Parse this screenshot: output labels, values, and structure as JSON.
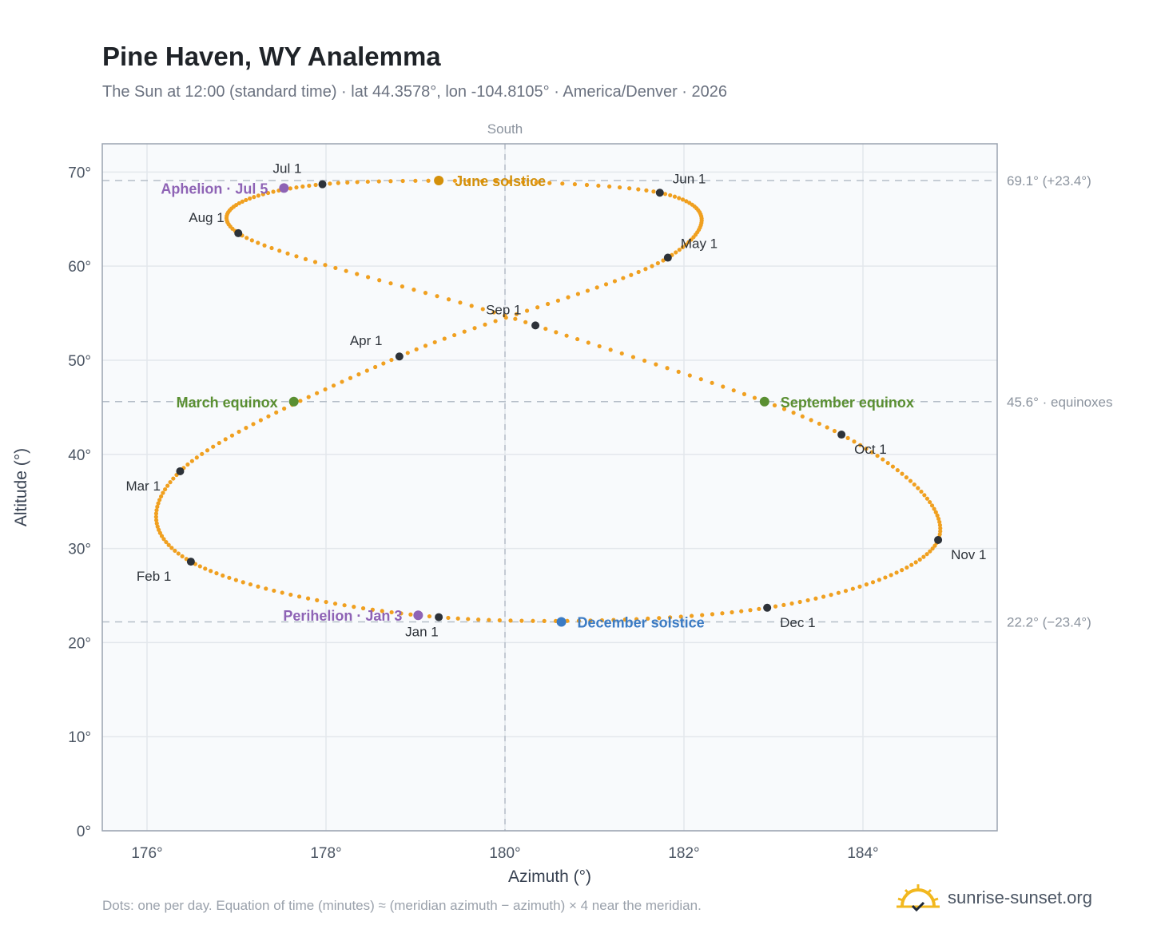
{
  "header": {
    "title": "Pine Haven, WY Analemma",
    "subtitle": "The Sun at 12:00 (standard time) · lat 44.3578°, lon -104.8105° · America/Denver · 2026"
  },
  "footer": {
    "note": "Dots: one per day. Equation of time (minutes) ≈ (meridian azimuth − azimuth) × 4 near the meridian.",
    "brand": "sunrise-sunset.org"
  },
  "chart_data": {
    "type": "scatter",
    "xlabel": "Azimuth (°)",
    "ylabel": "Altitude (°)",
    "xlim": [
      175.5,
      185.5
    ],
    "ylim": [
      0,
      73
    ],
    "xticks": [
      176,
      178,
      180,
      182,
      184
    ],
    "xtick_labels": [
      "176°",
      "178°",
      "180°",
      "182°",
      "184°"
    ],
    "yticks": [
      0,
      10,
      20,
      30,
      40,
      50,
      60,
      70
    ],
    "ytick_labels": [
      "0°",
      "10°",
      "20°",
      "30°",
      "40°",
      "50°",
      "60°",
      "70°"
    ],
    "grid": true,
    "meridian": {
      "azimuth": 180,
      "label": "South"
    },
    "reference_lines": [
      {
        "altitude": 69.1,
        "label": "69.1° (+23.4°)"
      },
      {
        "altitude": 45.6,
        "label": "45.6° · equinoxes"
      },
      {
        "altitude": 22.2,
        "label": "22.2° (−23.4°)"
      }
    ],
    "path_color": "#f0a020",
    "month_markers": [
      {
        "label": "Jan 1",
        "azimuth": 179.26,
        "altitude": 22.7,
        "pos": "below"
      },
      {
        "label": "Feb 1",
        "azimuth": 176.49,
        "altitude": 28.6,
        "pos": "below-left"
      },
      {
        "label": "Mar 1",
        "azimuth": 176.37,
        "altitude": 38.2,
        "pos": "below-left"
      },
      {
        "label": "Apr 1",
        "azimuth": 178.82,
        "altitude": 50.4,
        "pos": "above-left"
      },
      {
        "label": "May 1",
        "azimuth": 181.82,
        "altitude": 60.9,
        "pos": "above-right"
      },
      {
        "label": "Jun 1",
        "azimuth": 181.73,
        "altitude": 67.8,
        "pos": "above-right"
      },
      {
        "label": "Jul 1",
        "azimuth": 177.96,
        "altitude": 68.7,
        "pos": "above-left"
      },
      {
        "label": "Aug 1",
        "azimuth": 177.02,
        "altitude": 63.5,
        "pos": "above-left"
      },
      {
        "label": "Sep 1",
        "azimuth": 180.34,
        "altitude": 53.7,
        "pos": "above-left"
      },
      {
        "label": "Oct 1",
        "azimuth": 183.76,
        "altitude": 42.1,
        "pos": "below-right"
      },
      {
        "label": "Nov 1",
        "azimuth": 184.84,
        "altitude": 30.9,
        "pos": "below-right"
      },
      {
        "label": "Dec 1",
        "azimuth": 182.93,
        "altitude": 23.7,
        "pos": "below-right"
      }
    ],
    "events": [
      {
        "label": "June solstice",
        "azimuth": 179.26,
        "altitude": 69.1,
        "color": "#d4900a",
        "side": "right"
      },
      {
        "label": "December solstice",
        "azimuth": 180.63,
        "altitude": 22.2,
        "color": "#3b7bc4",
        "side": "right"
      },
      {
        "label": "March equinox",
        "azimuth": 177.64,
        "altitude": 45.6,
        "color": "#5a8f32",
        "side": "left"
      },
      {
        "label": "September equinox",
        "azimuth": 182.9,
        "altitude": 45.6,
        "color": "#5a8f32",
        "side": "right"
      },
      {
        "label": "Aphelion · Jul 5",
        "azimuth": 177.53,
        "altitude": 68.3,
        "color": "#8e63b5",
        "side": "left"
      },
      {
        "label": "Perihelion · Jan 3",
        "azimuth": 179.03,
        "altitude": 22.9,
        "color": "#8e63b5",
        "side": "left"
      }
    ]
  }
}
